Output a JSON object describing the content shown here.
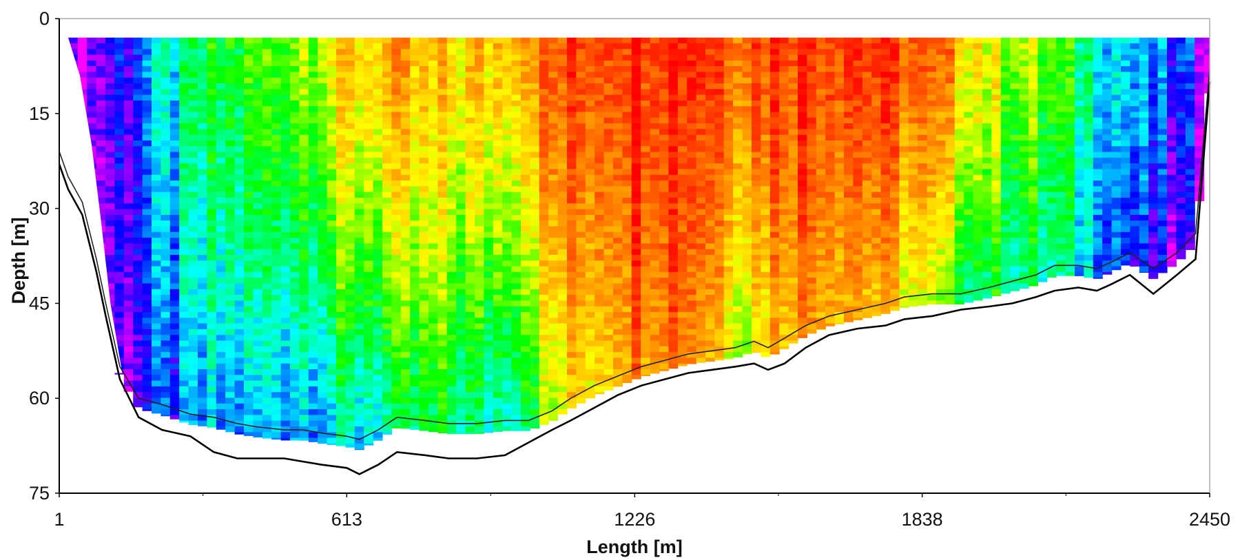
{
  "chart_data": {
    "type": "heatmap",
    "title": "",
    "xlabel": "Length [m]",
    "ylabel": "Depth [m]",
    "xlim": [
      1,
      2450
    ],
    "ylim": [
      0,
      75
    ],
    "y_inverted": true,
    "x_ticks": [
      "1",
      "613",
      "1226",
      "1838",
      "2450"
    ],
    "x_tick_values": [
      1,
      613,
      1226,
      1838,
      2450
    ],
    "y_ticks": [
      "0",
      "15",
      "30",
      "45",
      "60",
      "75"
    ],
    "y_tick_values": [
      0,
      15,
      30,
      45,
      60,
      75
    ],
    "grid": false,
    "colorscale": [
      "#ff00ff",
      "#0000ff",
      "#00ffff",
      "#00ff00",
      "#ffff00",
      "#ff8000",
      "#ff0000"
    ],
    "data_top_depth": 3,
    "bottom_profile": {
      "x": [
        1,
        20,
        50,
        80,
        100,
        130,
        170,
        220,
        280,
        330,
        380,
        420,
        480,
        520,
        560,
        613,
        640,
        680,
        720,
        780,
        830,
        890,
        950,
        1000,
        1050,
        1090,
        1140,
        1190,
        1240,
        1290,
        1340,
        1390,
        1440,
        1480,
        1510,
        1545,
        1590,
        1640,
        1700,
        1760,
        1800,
        1860,
        1920,
        1980,
        2030,
        2080,
        2120,
        2170,
        2210,
        2240,
        2280,
        2330,
        2380,
        2420,
        2450
      ],
      "y": [
        23,
        27,
        31,
        40,
        47,
        57,
        63,
        65,
        66,
        68.5,
        69.5,
        69.5,
        69.5,
        70,
        70.5,
        71,
        72,
        70.5,
        68.5,
        69,
        69.5,
        69.5,
        69,
        67,
        65,
        63.5,
        61.5,
        59.5,
        58,
        57,
        56,
        55.5,
        55,
        54.5,
        55.5,
        54.5,
        52,
        50,
        49,
        48.5,
        47.5,
        47,
        46,
        45.5,
        45,
        44,
        43,
        42.5,
        43,
        42,
        40.5,
        43.5,
        40.5,
        38,
        10
      ]
    },
    "boundary_profile": {
      "x": [
        1,
        20,
        50,
        80,
        100,
        130,
        170,
        220,
        280,
        330,
        380,
        420,
        480,
        520,
        560,
        613,
        640,
        680,
        720,
        780,
        830,
        890,
        950,
        1000,
        1050,
        1090,
        1140,
        1190,
        1240,
        1290,
        1340,
        1390,
        1440,
        1480,
        1510,
        1545,
        1590,
        1640,
        1700,
        1760,
        1800,
        1860,
        1920,
        1980,
        2030,
        2080,
        2120,
        2170,
        2210,
        2240,
        2280,
        2330,
        2380,
        2420,
        2450
      ],
      "y": [
        21,
        25,
        29,
        38,
        45,
        55,
        60,
        61,
        62.5,
        63,
        64,
        64.5,
        65,
        65,
        65.5,
        66,
        66.5,
        65,
        63,
        63.5,
        64,
        64,
        63.5,
        63.5,
        62,
        60,
        58,
        56.5,
        55,
        54,
        53,
        52.5,
        52,
        51,
        52,
        50.5,
        48.5,
        47,
        46,
        45,
        44,
        43.5,
        43.5,
        42.5,
        41.5,
        40.5,
        39,
        39,
        39.5,
        38.5,
        37,
        39.5,
        37,
        34,
        8
      ]
    },
    "surface_profile": {
      "x": [
        1,
        20,
        45,
        70,
        90,
        110,
        135
      ],
      "y": [
        3,
        3,
        9,
        20,
        32,
        45,
        56
      ]
    },
    "intensity_field": {
      "x": [
        1,
        60,
        140,
        220,
        320,
        420,
        520,
        613,
        700,
        780,
        850,
        920,
        1000,
        1080,
        1160,
        1226,
        1300,
        1380,
        1460,
        1540,
        1620,
        1700,
        1780,
        1838,
        1900,
        1980,
        2060,
        2140,
        2220,
        2300,
        2380,
        2450
      ],
      "surface": [
        0.0,
        0.08,
        0.17,
        0.32,
        0.45,
        0.52,
        0.62,
        0.72,
        0.77,
        0.72,
        0.73,
        0.74,
        0.84,
        0.89,
        0.95,
        0.98,
        0.98,
        0.96,
        0.9,
        0.96,
        0.96,
        0.95,
        0.9,
        0.86,
        0.8,
        0.68,
        0.6,
        0.5,
        0.38,
        0.28,
        0.18,
        0.1
      ],
      "bottom": [
        0.0,
        0.02,
        0.1,
        0.16,
        0.25,
        0.26,
        0.3,
        0.3,
        0.36,
        0.42,
        0.41,
        0.35,
        0.48,
        0.66,
        0.75,
        0.83,
        0.88,
        0.8,
        0.62,
        0.78,
        0.82,
        0.78,
        0.7,
        0.62,
        0.5,
        0.44,
        0.4,
        0.35,
        0.28,
        0.13,
        0.06,
        0.05
      ]
    }
  }
}
